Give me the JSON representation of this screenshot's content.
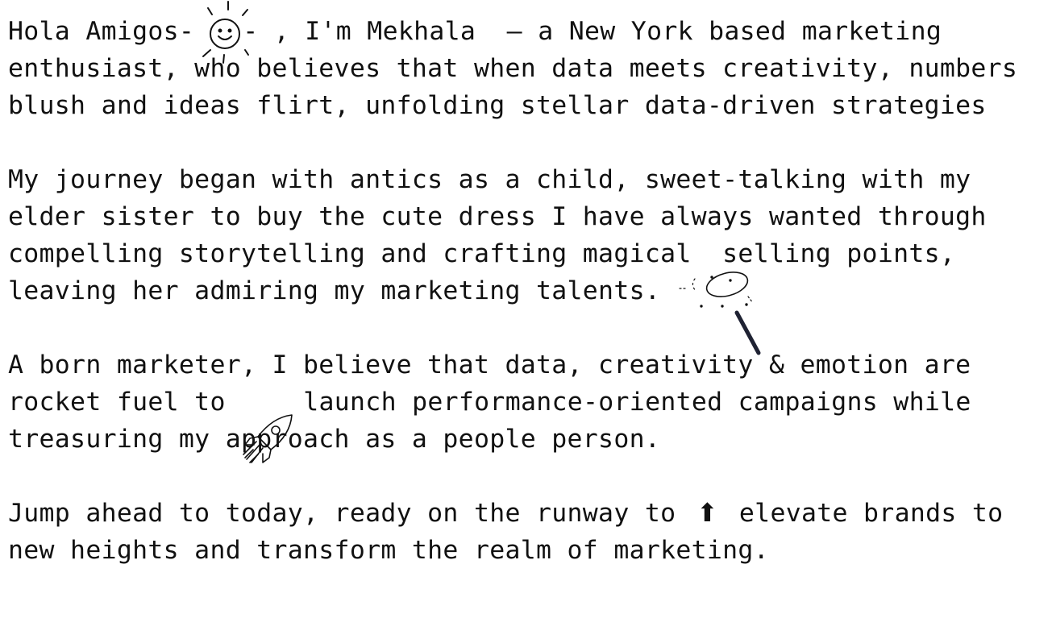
{
  "bio": {
    "para1": {
      "before_icon": "Hola Amigos-",
      "after_icon": "- , I'm Mekhala  – a New York based marketing enthusiast, who believes that when data meets creativity, numbers blush and ideas flirt, unfolding stellar data-driven strategies"
    },
    "para2": {
      "text": "My journey began with antics as a child, sweet-talking with my elder sister to buy the cute dress I have always wanted through compelling storytelling and crafting magical  selling points, leaving her admiring my marketing talents."
    },
    "para3": {
      "before_icon": "A born marketer, I believe that data, creativity & emotion are rocket fuel to ",
      "after_icon": " launch performance-oriented campaigns while treasuring my approach as a people person."
    },
    "para4": {
      "before_icon": "Jump ahead to today, ready on the runway to ",
      "icon_glyph": "⬆",
      "after_icon": " elevate brands to new heights and transform the realm of marketing."
    }
  },
  "icons": {
    "sun": "sun-doodle-icon",
    "wand": "magic-wand-doodle-icon",
    "rocket": "rocket-doodle-icon",
    "arrow": "up-arrow-icon"
  }
}
